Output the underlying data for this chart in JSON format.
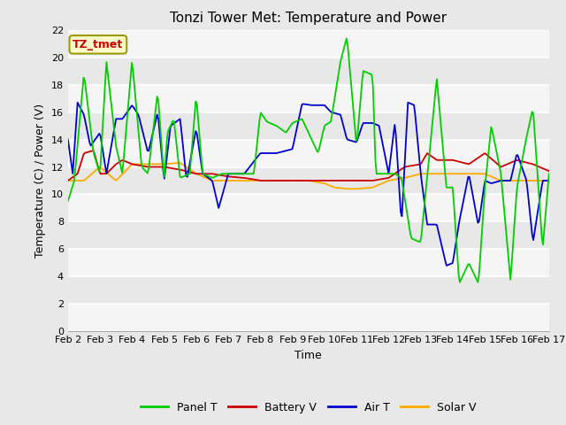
{
  "title": "Tonzi Tower Met: Temperature and Power",
  "xlabel": "Time",
  "ylabel": "Temperature (C) / Power (V)",
  "xlim": [
    0,
    15
  ],
  "ylim": [
    0,
    22
  ],
  "yticks": [
    0,
    2,
    4,
    6,
    8,
    10,
    12,
    14,
    16,
    18,
    20,
    22
  ],
  "xtick_labels": [
    "Feb 2",
    "Feb 3",
    "Feb 4",
    "Feb 5",
    "Feb 6",
    "Feb 7",
    "Feb 8",
    "Feb 9",
    "Feb 10",
    "Feb 11",
    "Feb 12",
    "Feb 13",
    "Feb 14",
    "Feb 15",
    "Feb 16",
    "Feb 17"
  ],
  "annotation_text": "TZ_tmet",
  "annotation_color": "#cc0000",
  "annotation_bg": "#ffffcc",
  "annotation_border": "#999900",
  "fig_bg": "#e8e8e8",
  "plot_bg": "#e8e8e8",
  "band_colors": [
    "#f0f0f0",
    "#e0e0e0"
  ],
  "grid_color": "#d8d8d8",
  "colors": {
    "panel": "#00cc00",
    "battery": "#cc0000",
    "air": "#0000cc",
    "solar": "#ffaa00"
  },
  "legend_labels": [
    "Panel T",
    "Battery V",
    "Air T",
    "Solar V"
  ],
  "title_fontsize": 11,
  "label_fontsize": 9,
  "tick_fontsize": 8,
  "legend_fontsize": 9
}
